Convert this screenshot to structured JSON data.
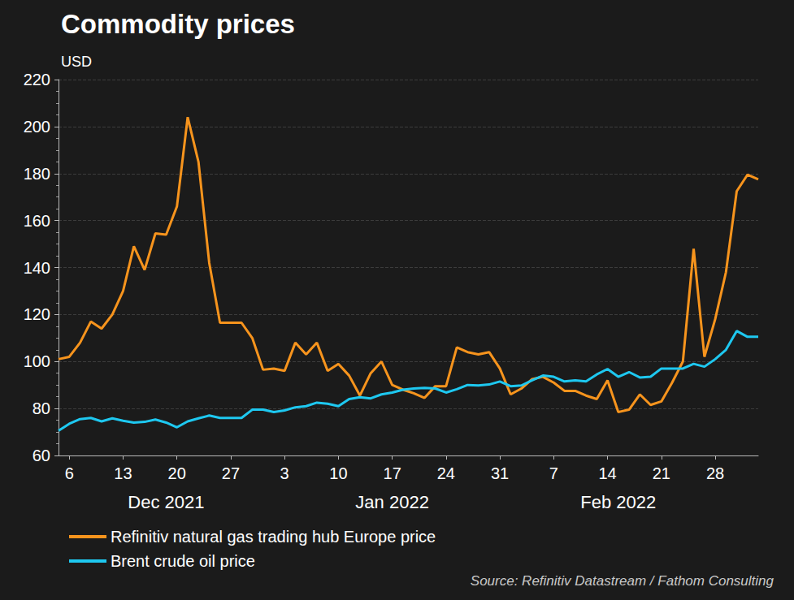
{
  "chart_data": {
    "type": "line",
    "title": "Commodity prices",
    "y_label": "USD",
    "source": "Source: Refinitiv Datastream / Fathom Consulting",
    "categories": [
      null,
      "6",
      null,
      null,
      null,
      null,
      "13",
      null,
      null,
      null,
      null,
      "20",
      null,
      null,
      null,
      null,
      "27",
      null,
      null,
      null,
      null,
      "3",
      null,
      null,
      null,
      null,
      "10",
      null,
      null,
      null,
      null,
      "17",
      null,
      null,
      null,
      null,
      "24",
      null,
      null,
      null,
      null,
      "31",
      null,
      null,
      null,
      null,
      "7",
      null,
      null,
      null,
      null,
      "14",
      null,
      null,
      null,
      null,
      "21",
      null,
      null,
      null,
      null,
      "28",
      null,
      null,
      null,
      null
    ],
    "month_categories": [
      null,
      null,
      null,
      null,
      null,
      null,
      null,
      null,
      null,
      null,
      "Dec 2021",
      null,
      null,
      null,
      null,
      null,
      null,
      null,
      null,
      null,
      null,
      null,
      null,
      null,
      null,
      null,
      null,
      null,
      null,
      null,
      null,
      "Jan 2022",
      null,
      null,
      null,
      null,
      null,
      null,
      null,
      null,
      null,
      null,
      null,
      null,
      null,
      null,
      null,
      null,
      null,
      null,
      null,
      null,
      "Feb 2022",
      null,
      null,
      null,
      null,
      null,
      null,
      null,
      null,
      null,
      null,
      null,
      null,
      null
    ],
    "series": [
      {
        "name": "Refinitiv natural gas trading hub Europe price",
        "color": "#f7941d",
        "values": [
          101,
          102,
          108,
          117,
          114,
          120,
          130,
          149,
          139,
          154.5,
          154,
          166,
          204,
          185,
          142,
          116.5,
          116.5,
          116.5,
          110,
          96.5,
          97,
          96,
          108,
          103,
          108,
          96,
          99,
          94,
          85.5,
          95,
          100,
          90,
          88,
          86.5,
          84.5,
          89.5,
          89.5,
          106,
          104,
          103,
          104,
          97,
          86,
          88.5,
          92.5,
          93.5,
          91,
          87.5,
          87.5,
          85.5,
          84,
          92,
          78.5,
          79.5,
          86,
          81.5,
          83,
          91,
          100,
          148,
          102,
          118,
          138,
          172.5,
          179.5,
          177.5
        ]
      },
      {
        "name": "Brent crude oil price",
        "color": "#1ec8f0",
        "values": [
          70.5,
          73.5,
          75.5,
          76,
          74.5,
          75.8,
          74.8,
          74,
          74.3,
          75.3,
          74,
          72,
          74.5,
          75.8,
          77,
          76,
          76,
          76,
          79.5,
          79.5,
          78.5,
          79.2,
          80.5,
          81,
          82.5,
          82,
          81,
          84,
          84.8,
          84.3,
          86,
          86.8,
          88,
          88.5,
          88.8,
          88.5,
          86.8,
          88.2,
          90,
          89.8,
          90.2,
          91.5,
          89.5,
          89.8,
          92,
          94,
          93.5,
          91.5,
          92,
          91.5,
          94.5,
          96.8,
          93.5,
          95.5,
          93.2,
          93.5,
          97,
          97,
          97,
          99,
          97.8,
          101,
          105,
          113,
          110.5,
          110.5
        ]
      }
    ],
    "ylim": [
      60,
      220
    ],
    "yticks": [
      60,
      80,
      100,
      120,
      140,
      160,
      180,
      200,
      220
    ],
    "grid": true,
    "legend": "bottom-left"
  }
}
